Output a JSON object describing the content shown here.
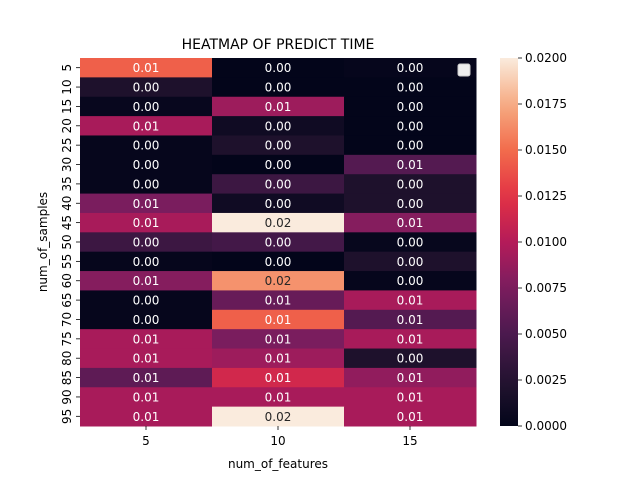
{
  "chart_data": {
    "type": "heatmap",
    "title": "HEATMAP OF PREDICT TIME",
    "xlabel": "num_of_features",
    "ylabel": "num_of_samples",
    "x_categories": [
      "5",
      "10",
      "15"
    ],
    "y_categories": [
      "5",
      "10",
      "15",
      "20",
      "25",
      "30",
      "35",
      "40",
      "45",
      "50",
      "55",
      "60",
      "65",
      "70",
      "75",
      "80",
      "85",
      "90",
      "95"
    ],
    "values": [
      [
        0.0145,
        0.0,
        0.0002
      ],
      [
        0.002,
        0.0,
        0.0
      ],
      [
        0.0004,
        0.009,
        0.0
      ],
      [
        0.0095,
        0.001,
        0.0
      ],
      [
        0.0002,
        0.002,
        0.0
      ],
      [
        0.0002,
        0.0,
        0.0055
      ],
      [
        0.0002,
        0.004,
        0.002
      ],
      [
        0.0075,
        0.001,
        0.002
      ],
      [
        0.0095,
        0.02,
        0.008
      ],
      [
        0.004,
        0.0045,
        0.0003
      ],
      [
        0.0002,
        0.0,
        0.002
      ],
      [
        0.008,
        0.0165,
        0.0002
      ],
      [
        0.0002,
        0.0065,
        0.0095
      ],
      [
        0.0002,
        0.0145,
        0.0055
      ],
      [
        0.0095,
        0.0075,
        0.0095
      ],
      [
        0.0095,
        0.009,
        0.002
      ],
      [
        0.006,
        0.0115,
        0.0085
      ],
      [
        0.0095,
        0.0095,
        0.0095
      ],
      [
        0.0095,
        0.02,
        0.0095
      ]
    ],
    "cell_labels": [
      [
        "0.01",
        "0.00",
        "0.00"
      ],
      [
        "0.00",
        "0.00",
        "0.00"
      ],
      [
        "0.00",
        "0.01",
        "0.00"
      ],
      [
        "0.01",
        "0.00",
        "0.00"
      ],
      [
        "0.00",
        "0.00",
        "0.00"
      ],
      [
        "0.00",
        "0.00",
        "0.01"
      ],
      [
        "0.00",
        "0.00",
        "0.00"
      ],
      [
        "0.01",
        "0.00",
        "0.00"
      ],
      [
        "0.01",
        "0.02",
        "0.01"
      ],
      [
        "0.00",
        "0.00",
        "0.00"
      ],
      [
        "0.00",
        "0.00",
        "0.00"
      ],
      [
        "0.01",
        "0.02",
        "0.00"
      ],
      [
        "0.00",
        "0.01",
        "0.01"
      ],
      [
        "0.00",
        "0.01",
        "0.01"
      ],
      [
        "0.01",
        "0.01",
        "0.01"
      ],
      [
        "0.01",
        "0.01",
        "0.00"
      ],
      [
        "0.01",
        "0.01",
        "0.01"
      ],
      [
        "0.01",
        "0.01",
        "0.01"
      ],
      [
        "0.01",
        "0.02",
        "0.01"
      ]
    ],
    "color_range": [
      0.0,
      0.02
    ],
    "colorbar_ticks": [
      "0.0000",
      "0.0025",
      "0.0050",
      "0.0075",
      "0.0100",
      "0.0125",
      "0.0150",
      "0.0175",
      "0.0200"
    ],
    "colormap": "rocket",
    "legend": "top-right (empty)"
  }
}
